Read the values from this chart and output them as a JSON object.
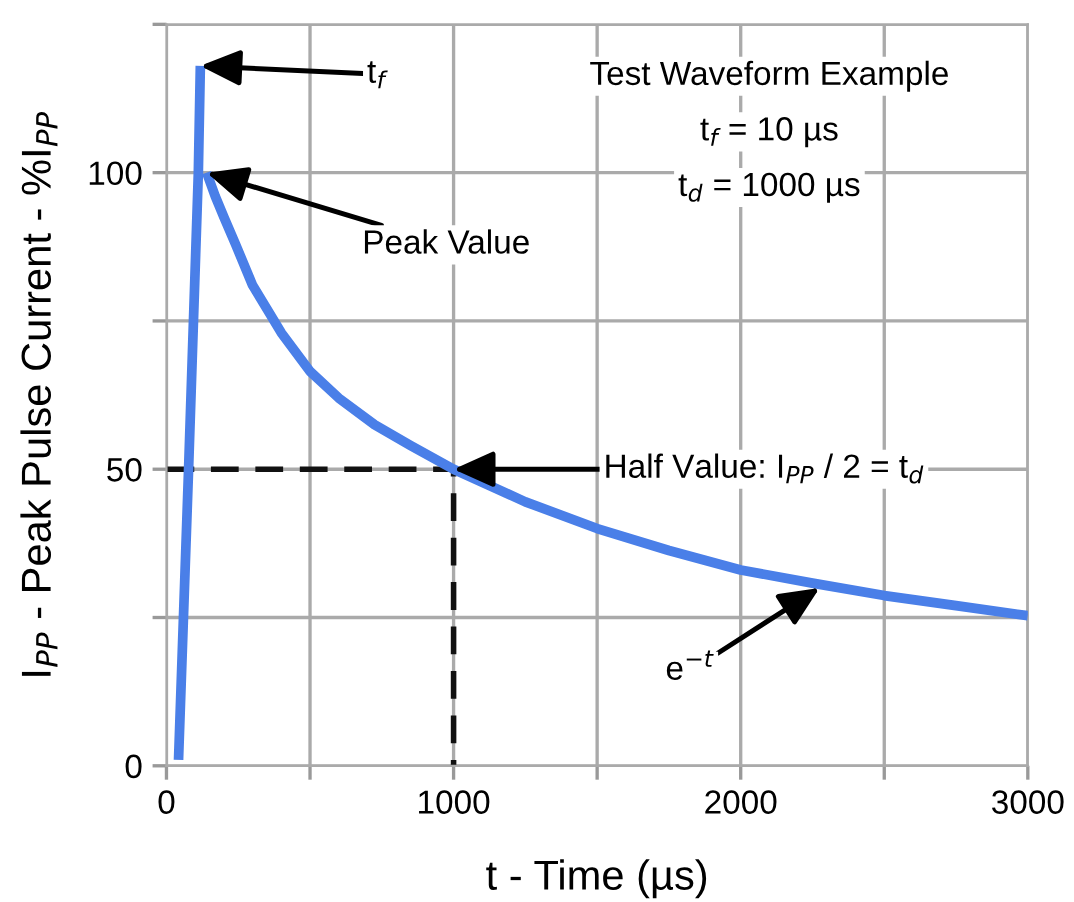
{
  "chart_data": {
    "type": "line",
    "xlabel": "t - Time (µs)",
    "ylabel": "I$_{PP}$ - Peak Pulse Current - %I$_{PP}$",
    "xlim": [
      0,
      3000
    ],
    "ylim": [
      0,
      125
    ],
    "xticks": [
      0,
      {
        "value": 500,
        "label": null
      },
      1000,
      {
        "value": 1500,
        "label": null
      },
      2000,
      {
        "value": 2500,
        "label": null
      },
      3000
    ],
    "yticks": [
      0,
      {
        "value": 25,
        "label": null
      },
      50,
      {
        "value": 75,
        "label": null
      },
      100,
      {
        "value": 125,
        "label": null
      }
    ],
    "grid": true,
    "marker": "none",
    "series": [
      {
        "color": "#4a7fe8",
        "line_style": "solid",
        "x": [
          42,
          77,
          111,
          118
        ],
        "values": [
          1,
          50,
          100,
          118
        ]
      },
      {
        "color": "#4a7fe8",
        "line_style": "solid",
        "x": [
          140,
          170,
          200,
          240,
          300,
          350,
          400,
          500,
          600,
          725,
          850,
          1000,
          1250,
          1500,
          1750,
          2000,
          2250,
          2500,
          2750,
          3000
        ],
        "values": [
          100,
          96,
          92.5,
          88,
          81,
          77,
          73,
          66.5,
          62,
          57.5,
          54,
          50,
          44.5,
          40,
          36.3,
          33,
          30.8,
          28.7,
          27,
          25.3
        ]
      },
      {
        "color": "#111111",
        "line_style": "dashed",
        "x": [
          0,
          1000,
          1000
        ],
        "values": [
          50,
          50,
          0
        ]
      }
    ],
    "annotations": [
      {
        "text": "t$_{f}$",
        "x": 118,
        "y": 118
      },
      {
        "text": "Peak Value",
        "x": 140,
        "y": 100
      },
      {
        "text": "Half Value: I$_{PP}$ / 2 = t$_{d}$",
        "x": 1000,
        "y": 50
      },
      {
        "text": "e$^{−t}$",
        "x": 2275,
        "y": 30
      },
      "Test Waveform Example",
      "t$_{f}$ = 10 µs",
      "t$_{d}$ = 1000 µs"
    ]
  }
}
